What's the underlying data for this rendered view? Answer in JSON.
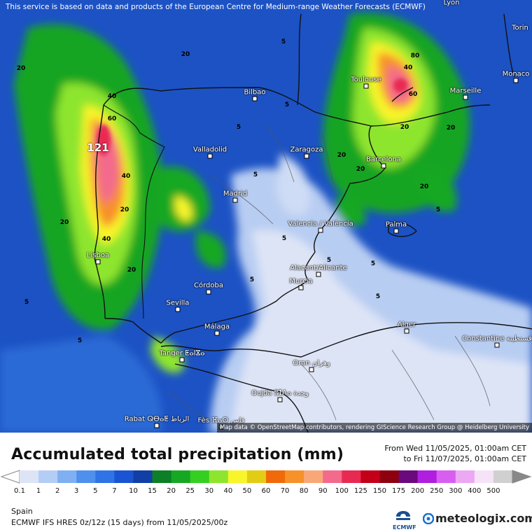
{
  "disclaimer": "This service is based on data and products of the European Centre for Medium-range Weather Forecasts (ECMWF)",
  "attribution": "Map data © OpenStreetMap contributors, rendering GIScience Research Group @ Heidelberg University",
  "title": "Accumulated total precipitation (mm)",
  "period_from": "From Wed 11/05/2025, 01:00am CET",
  "period_to": "to Fri 11/07/2025, 01:00am CET",
  "region": "Spain",
  "model": "ECMWF IFS HRES 0z/12z (15 days) from  11/05/2025/00z",
  "logos": {
    "ecmwf": "ECMWF",
    "meteologix": "meteologix.com"
  },
  "legend": {
    "ticks": [
      "0.1",
      "1",
      "2",
      "3",
      "5",
      "7",
      "10",
      "15",
      "20",
      "25",
      "30",
      "40",
      "50",
      "60",
      "70",
      "80",
      "90",
      "100",
      "125",
      "150",
      "175",
      "200",
      "250",
      "300",
      "400",
      "500"
    ],
    "colors": [
      "#dde4f6",
      "#b4cdf5",
      "#7fb0f2",
      "#4f90ee",
      "#2f73e6",
      "#1b54d2",
      "#123fa6",
      "#0d7f27",
      "#17a823",
      "#35cf22",
      "#8ee52d",
      "#f8f52a",
      "#e3cd14",
      "#f06a0a",
      "#f7912a",
      "#f8a878",
      "#f36a8c",
      "#e82a53",
      "#c40018",
      "#8f000f",
      "#6b0a7c",
      "#b01ee0",
      "#d85ef0",
      "#eca8f4",
      "#f6e3f8",
      "#d0d0d0"
    ]
  },
  "cities": [
    {
      "name": "Lyon",
      "dot": false
    },
    {
      "name": "Torin",
      "dot": false
    },
    {
      "name": "Toulouse",
      "dot": true
    },
    {
      "name": "Marseille",
      "dot": true
    },
    {
      "name": "Monaco",
      "dot": true
    },
    {
      "name": "Bilbao",
      "dot": true
    },
    {
      "name": "Valladolid",
      "dot": true
    },
    {
      "name": "Zaragoza",
      "dot": true
    },
    {
      "name": "Barcelona",
      "dot": true
    },
    {
      "name": "Madrid",
      "dot": true
    },
    {
      "name": "Valencia / València",
      "dot": true
    },
    {
      "name": "Palma",
      "dot": true
    },
    {
      "name": "Lisboa",
      "dot": true
    },
    {
      "name": "Alacant/Alicante",
      "dot": true
    },
    {
      "name": "Murcia",
      "dot": true
    },
    {
      "name": "Córdoba",
      "dot": true
    },
    {
      "name": "Sevilla",
      "dot": true
    },
    {
      "name": "Málaga",
      "dot": true
    },
    {
      "name": "Alger",
      "dot": true
    },
    {
      "name": "Constantine قسنطينة",
      "dot": true
    },
    {
      "name": "Tanger ⵟⴰⵏⴵⴰ",
      "dot": true
    },
    {
      "name": "Oran وهران",
      "dot": true
    },
    {
      "name": "Oujda ⵓⵊⴷⴰ وجدة",
      "dot": true
    },
    {
      "name": "Rabat ⵕⴱⴰⵟ الرباط",
      "dot": true
    },
    {
      "name": "Fès ⴼⴰⵙ فاس",
      "dot": true
    }
  ],
  "values": [
    "20",
    "20",
    "40",
    "60",
    "121",
    "40",
    "20",
    "5",
    "5",
    "5",
    "5",
    "80",
    "40",
    "60",
    "20",
    "20",
    "20",
    "40",
    "20",
    "20",
    "5",
    "5",
    "5",
    "5",
    "5",
    "5",
    "20",
    "20",
    "5",
    "5"
  ]
}
